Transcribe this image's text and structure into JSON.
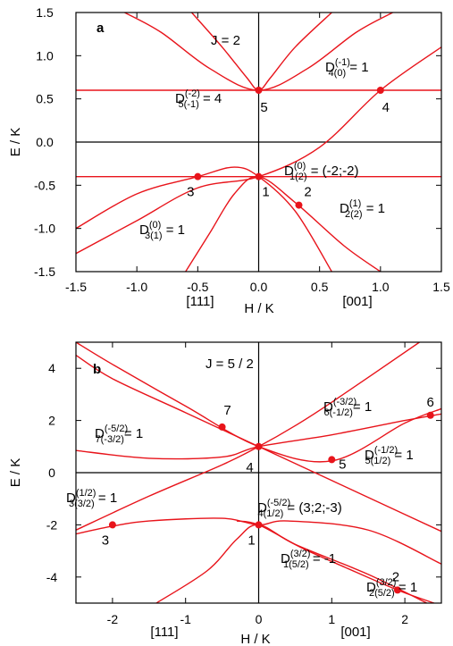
{
  "chart_data": [
    {
      "type": "line",
      "panel": "a",
      "annotation": "J = 2",
      "xlabel": "H / K",
      "ylabel": "E / K",
      "xlim": [
        -1.5,
        1.5
      ],
      "ylim": [
        -1.5,
        1.5
      ],
      "xticks": [
        "-1.5",
        "-1.0",
        "-0.5",
        "0.0",
        "0.5",
        "1.0",
        "1.5"
      ],
      "yticks": [
        "1.5",
        "1.0",
        "0.5",
        "0.0",
        "-0.5",
        "-1.0",
        "-1.5"
      ],
      "direction_labels": [
        "[111]",
        "[001]"
      ],
      "series": [
        {
          "x": [
            -1.5,
            -1.0,
            -0.5,
            0.0,
            0.5,
            1.0,
            1.5
          ],
          "y": [
            -1.29,
            -0.91,
            -0.53,
            -0.4,
            -0.06,
            0.6,
            1.1
          ]
        },
        {
          "x": [
            -1.5,
            -1.0,
            -0.5,
            -0.2,
            0.0,
            0.3,
            0.6
          ],
          "y": [
            -1.0,
            -0.6,
            -0.4,
            -0.29,
            -0.4,
            -0.8,
            -1.5
          ]
        },
        {
          "x": [
            -1.5,
            -1.0,
            -0.5,
            0.0,
            0.5,
            1.0,
            1.5
          ],
          "y": [
            -0.4,
            -0.4,
            -0.4,
            -0.4,
            -0.4,
            -0.4,
            -0.4
          ]
        },
        {
          "x": [
            -1.5,
            -1.0,
            -0.5,
            0.0,
            0.5,
            1.0,
            1.5
          ],
          "y": [
            0.6,
            0.6,
            0.6,
            0.6,
            0.6,
            0.6,
            0.6
          ]
        },
        {
          "x": [
            -1.1,
            -0.8,
            -0.4,
            0.0,
            0.4,
            0.8,
            1.1
          ],
          "y": [
            1.5,
            1.27,
            0.85,
            0.6,
            0.85,
            1.27,
            1.5
          ]
        },
        {
          "x": [
            -0.55,
            -0.3,
            -0.1,
            0.0,
            0.1,
            0.3,
            0.6
          ],
          "y": [
            1.5,
            1.1,
            0.75,
            0.6,
            0.75,
            1.1,
            1.5
          ]
        },
        {
          "x": [
            -0.6,
            -0.4,
            -0.2,
            0.0,
            0.3,
            0.7,
            1.0
          ],
          "y": [
            -1.5,
            -1.05,
            -0.6,
            -0.4,
            -0.7,
            -1.2,
            -1.5
          ]
        }
      ],
      "points": [
        {
          "label": "1",
          "x": 0.0,
          "y": -0.4
        },
        {
          "label": "2",
          "x": 0.33,
          "y": -0.73
        },
        {
          "label": "3",
          "x": -0.5,
          "y": -0.4
        },
        {
          "label": "4",
          "x": 1.0,
          "y": 0.6
        },
        {
          "label": "5",
          "x": 0.0,
          "y": 0.6
        }
      ],
      "labels": [
        {
          "base": "D",
          "sup": "(-1)",
          "sub": "4(0)",
          "value": " = 1"
        },
        {
          "base": "D",
          "sup": "(-2)",
          "sub": "5(-1)",
          "value": " = 4"
        },
        {
          "base": "D",
          "sup": "(0)",
          "sub": "1(2)",
          "value": " = (-2;-2)"
        },
        {
          "base": "D",
          "sup": "(1)",
          "sub": "2(2)",
          "value": " = 1"
        },
        {
          "base": "D",
          "sup": "(0)",
          "sub": "3(1)",
          "value": " = 1"
        }
      ]
    },
    {
      "type": "line",
      "panel": "b",
      "annotation": "J = 5 / 2",
      "xlabel": "H / K",
      "ylabel": "E / K",
      "xlim": [
        -2.5,
        2.5
      ],
      "ylim": [
        -5,
        5
      ],
      "xticks": [
        "-2",
        "-1",
        "0",
        "1",
        "2"
      ],
      "yticks": [
        "4",
        "2",
        "0",
        "-2",
        "-4"
      ],
      "direction_labels": [
        "[111]",
        "[001]"
      ],
      "series": [
        {
          "x": [
            -2.5,
            -2.0,
            -1.0,
            0.0,
            1.0,
            2.0,
            2.5
          ],
          "y": [
            4.5,
            3.6,
            2.3,
            1.0,
            -0.3,
            -1.6,
            -2.25
          ]
        },
        {
          "x": [
            -2.5,
            -2.0,
            -1.0,
            0.0,
            1.0,
            2.0,
            2.5
          ],
          "y": [
            5.0,
            4.15,
            2.55,
            1.0,
            0.45,
            1.9,
            2.45
          ]
        },
        {
          "x": [
            -2.5,
            -1.5,
            -0.5,
            0.0,
            1.0,
            2.0,
            2.5
          ],
          "y": [
            0.85,
            0.55,
            0.6,
            1.0,
            1.45,
            2.0,
            2.25
          ]
        },
        {
          "x": [
            -2.5,
            -1.5,
            -0.5,
            0.0,
            0.5,
            1.0,
            2.2
          ],
          "y": [
            -2.2,
            -0.9,
            0.3,
            1.0,
            1.8,
            2.7,
            5.0
          ]
        },
        {
          "x": [
            -2.5,
            -2.0,
            -1.5,
            -0.5,
            0.0,
            0.4,
            1.5,
            2.5
          ],
          "y": [
            -2.35,
            -2.05,
            -1.85,
            -1.75,
            -2.0,
            -1.85,
            -2.2,
            -3.5
          ]
        },
        {
          "x": [
            -1.4,
            -0.7,
            -0.3,
            0.0,
            0.5,
            1.5,
            2.3
          ],
          "y": [
            -5.0,
            -3.75,
            -2.55,
            -2.0,
            -2.75,
            -3.9,
            -5.0
          ]
        },
        {
          "x": [
            -0.3,
            0.0,
            0.6,
            1.2,
            1.9,
            2.4
          ],
          "y": [
            -1.85,
            -2.0,
            -2.9,
            -3.65,
            -4.5,
            -5.0
          ]
        }
      ],
      "points": [
        {
          "label": "1",
          "x": 0.0,
          "y": -2.0
        },
        {
          "label": "2",
          "x": 1.9,
          "y": -4.5
        },
        {
          "label": "3",
          "x": -2.0,
          "y": -2.0
        },
        {
          "label": "4",
          "x": 0.0,
          "y": 1.0
        },
        {
          "label": "5",
          "x": 1.0,
          "y": 0.5
        },
        {
          "label": "6",
          "x": 2.35,
          "y": 2.2
        },
        {
          "label": "7",
          "x": -0.5,
          "y": 1.75
        }
      ],
      "labels": [
        {
          "base": "D",
          "sup": "(-3/2)",
          "sub": "6(-1/2)",
          "value": "= 1"
        },
        {
          "base": "D",
          "sup": "(-5/2)",
          "sub": "7(-3/2)",
          "value": "= 1"
        },
        {
          "base": "D",
          "sup": "(-1/2)",
          "sub": "5(1/2)",
          "value": " = 1"
        },
        {
          "base": "D",
          "sup": "(1/2)",
          "sub": "3(3/2)",
          "value": " = 1"
        },
        {
          "base": "D",
          "sup": "(-5/2)",
          "sub": "4(1/2)",
          "value": " = (3;2;-3)"
        },
        {
          "base": "D",
          "sup": "(3/2)",
          "sub": "2(5/2)",
          "value": " = 1"
        },
        {
          "base": "D",
          "sup": "(3/2)",
          "sub": "1(5/2)",
          "value": " = -1"
        }
      ]
    }
  ]
}
